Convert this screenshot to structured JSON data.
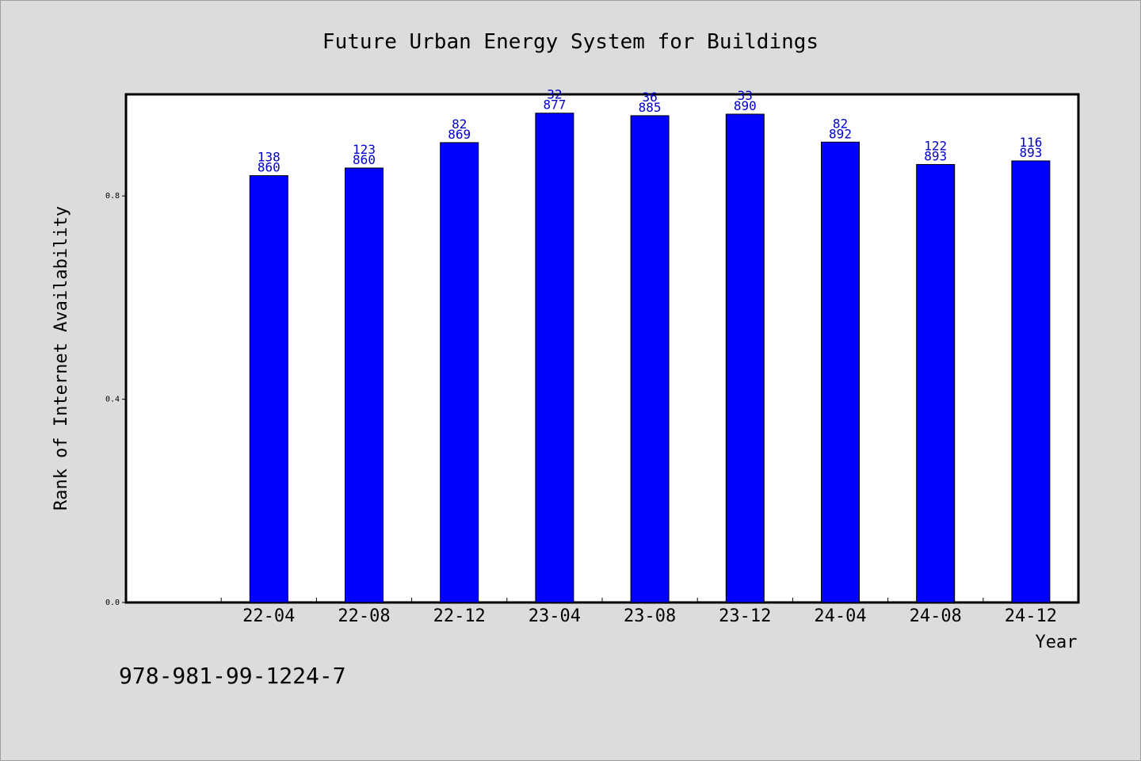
{
  "chart_data": {
    "type": "bar",
    "title": "Future Urban Energy System for Buildings",
    "xlabel": "Year",
    "ylabel": "Rank of Internet Availability",
    "ylim": [
      0,
      1.0
    ],
    "yticks": [
      "0.0",
      "0.4",
      "0.8"
    ],
    "ytick_values": [
      0.0,
      0.4,
      0.8
    ],
    "grid": false,
    "categories": [
      "22-04",
      "22-08",
      "22-12",
      "23-04",
      "23-08",
      "23-12",
      "24-04",
      "24-08",
      "24-12"
    ],
    "values": [
      0.84,
      0.855,
      0.905,
      0.963,
      0.958,
      0.961,
      0.906,
      0.862,
      0.869
    ],
    "labels_top": [
      "138",
      "123",
      "82",
      "32",
      "36",
      "33",
      "82",
      "122",
      "116"
    ],
    "labels_bottom": [
      "860",
      "860",
      "869",
      "877",
      "885",
      "890",
      "892",
      "893",
      "893"
    ],
    "bar_color": "#0000ff",
    "label_color": "#0000cc"
  },
  "footer_text": "978-981-99-1224-7",
  "colors": {
    "background": "#dcdcdc",
    "plot_background": "#ffffff",
    "axis": "#000000"
  }
}
